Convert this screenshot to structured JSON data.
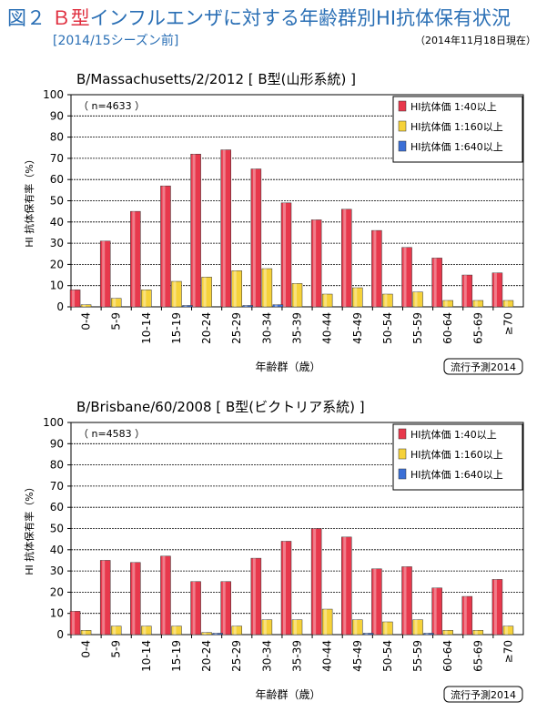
{
  "header": {
    "figure_label": "図２",
    "title_b": "Ｂ型",
    "title_rest": "インフルエンザに対する年齢群別HI抗体保有状況",
    "subtitle": "[2014/15シーズン前]",
    "as_of": "（2014年11月18日現在）"
  },
  "chart_data": [
    {
      "type": "bar",
      "title": "B/Massachusetts/2/2012 [ B型(山形系統) ]",
      "sample": "（ n=4633 ）",
      "xlabel": "年齢群（歳）",
      "ylabel": "HI 抗体保有率（%）",
      "ylim": [
        0,
        100
      ],
      "yticks": [
        "0",
        "10",
        "20",
        "30",
        "40",
        "50",
        "60",
        "70",
        "80",
        "90",
        "100"
      ],
      "grid": true,
      "legend_position": "top-right",
      "footnote": "流行予測2014",
      "categories": [
        "0-4",
        "5-9",
        "10-14",
        "15-19",
        "20-24",
        "25-29",
        "30-34",
        "35-39",
        "40-44",
        "45-49",
        "50-54",
        "55-59",
        "60-64",
        "65-69",
        "≥70"
      ],
      "series": [
        {
          "name": "HI抗体価 1:40以上",
          "color": "#e8384c",
          "values": [
            8,
            31,
            45,
            57,
            72,
            74,
            65,
            49,
            41,
            46,
            36,
            28,
            23,
            15,
            16
          ]
        },
        {
          "name": "HI抗体価 1:160以上",
          "color": "#f6d23a",
          "values": [
            1,
            4,
            8,
            12,
            14,
            17,
            18,
            11,
            6,
            9,
            6,
            7,
            3,
            3,
            3
          ]
        },
        {
          "name": "HI抗体価 1:640以上",
          "color": "#3b6fd6",
          "values": [
            0,
            0,
            0,
            0.5,
            0,
            0.5,
            1,
            0,
            0,
            0,
            0,
            0,
            0,
            0,
            0
          ]
        }
      ]
    },
    {
      "type": "bar",
      "title": "B/Brisbane/60/2008 [ B型(ビクトリア系統) ]",
      "sample": "（ n=4583 ）",
      "xlabel": "年齢群（歳）",
      "ylabel": "HI 抗体保有率（%）",
      "ylim": [
        0,
        100
      ],
      "yticks": [
        "0",
        "10",
        "20",
        "30",
        "40",
        "50",
        "60",
        "70",
        "80",
        "90",
        "100"
      ],
      "grid": true,
      "legend_position": "top-right",
      "footnote": "流行予測2014",
      "categories": [
        "0-4",
        "5-9",
        "10-14",
        "15-19",
        "20-24",
        "25-29",
        "30-34",
        "35-39",
        "40-44",
        "45-49",
        "50-54",
        "55-59",
        "60-64",
        "65-69",
        "≥70"
      ],
      "series": [
        {
          "name": "HI抗体価 1:40以上",
          "color": "#e8384c",
          "values": [
            11,
            35,
            34,
            37,
            25,
            25,
            36,
            44,
            50,
            46,
            31,
            32,
            22,
            18,
            26
          ]
        },
        {
          "name": "HI抗体価 1:160以上",
          "color": "#f6d23a",
          "values": [
            2,
            4,
            4,
            4,
            1,
            4,
            7,
            7,
            12,
            7,
            6,
            7,
            2,
            2,
            4
          ]
        },
        {
          "name": "HI抗体価 1:640以上",
          "color": "#3b6fd6",
          "values": [
            0,
            0,
            0,
            0,
            0.5,
            0,
            0,
            0,
            0,
            0.5,
            0,
            0.5,
            0,
            0,
            0
          ]
        }
      ]
    }
  ]
}
